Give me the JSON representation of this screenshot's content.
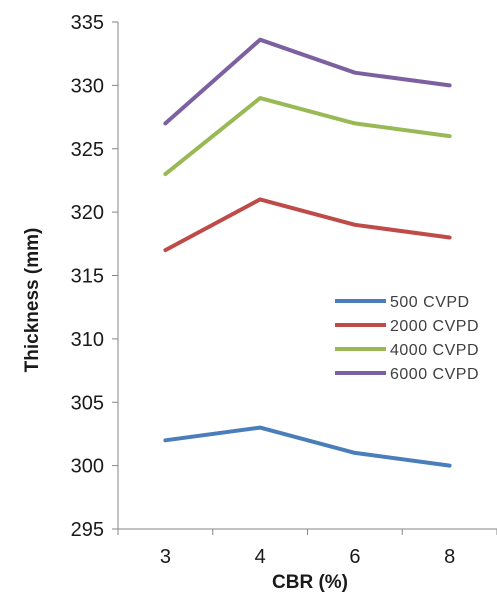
{
  "chart_data": {
    "type": "line",
    "categories": [
      "3",
      "4",
      "6",
      "8"
    ],
    "xlabel": "CBR (%)",
    "ylabel": "Thickness (mm)",
    "title": "",
    "ylim": [
      295,
      335
    ],
    "y_ticks": [
      295,
      300,
      305,
      310,
      315,
      320,
      325,
      330,
      335
    ],
    "grid": false,
    "legend_position": "right",
    "series": [
      {
        "name": "500 CVPD",
        "color": "#4a7ebb",
        "values": [
          302,
          303,
          301,
          300
        ]
      },
      {
        "name": "2000 CVPD",
        "color": "#be4b48",
        "values": [
          317,
          321,
          319,
          318
        ]
      },
      {
        "name": "4000 CVPD",
        "color": "#98b954",
        "values": [
          323,
          329,
          327,
          326
        ]
      },
      {
        "name": "6000 CVPD",
        "color": "#7d60a0",
        "values": [
          327,
          333.6,
          331,
          330
        ]
      }
    ]
  }
}
